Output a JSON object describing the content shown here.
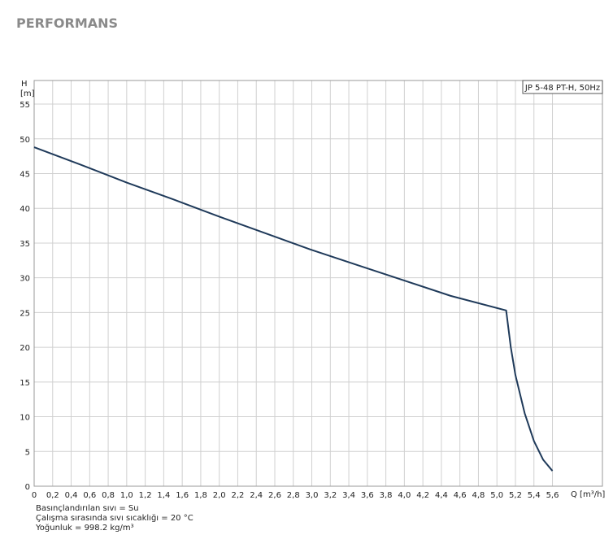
{
  "header": {
    "title": "PERFORMANS"
  },
  "chart_data": {
    "type": "line",
    "y_label": "H",
    "y_unit": "[m]",
    "x_label": "Q [m³/h]",
    "legend_label": "JP 5-48 PT-H, 50Hz",
    "x": [
      0,
      0.5,
      1.0,
      1.5,
      2.0,
      2.5,
      3.0,
      3.5,
      4.0,
      4.5,
      5.1,
      5.15,
      5.2,
      5.3,
      5.4,
      5.5,
      5.6
    ],
    "series": [
      {
        "name": "JP 5-48 PT-H, 50Hz",
        "color": "#1f3a5a",
        "values": [
          48.8,
          46.3,
          43.7,
          41.3,
          38.8,
          36.4,
          34.0,
          31.8,
          29.6,
          27.4,
          25.3,
          20,
          16,
          10.5,
          6.5,
          3.8,
          2.2
        ]
      }
    ],
    "xlim": [
      0,
      6.14
    ],
    "ylim": [
      0,
      58.4
    ],
    "xticks": [
      0,
      {
        "value": 0.2,
        "label": "0,2"
      },
      {
        "value": 0.4,
        "label": "0,4"
      },
      {
        "value": 0.6,
        "label": "0,6"
      },
      {
        "value": 0.8,
        "label": "0,8"
      },
      {
        "value": 1.0,
        "label": "1,0"
      },
      {
        "value": 1.2,
        "label": "1,2"
      },
      {
        "value": 1.4,
        "label": "1,4"
      },
      {
        "value": 1.6,
        "label": "1,6"
      },
      {
        "value": 1.8,
        "label": "1,8"
      },
      {
        "value": 2.0,
        "label": "2,0"
      },
      {
        "value": 2.2,
        "label": "2,2"
      },
      {
        "value": 2.4,
        "label": "2,4"
      },
      {
        "value": 2.6,
        "label": "2,6"
      },
      {
        "value": 2.8,
        "label": "2,8"
      },
      {
        "value": 3.0,
        "label": "3,0"
      },
      {
        "value": 3.2,
        "label": "3,2"
      },
      {
        "value": 3.4,
        "label": "3,4"
      },
      {
        "value": 3.6,
        "label": "3,6"
      },
      {
        "value": 3.8,
        "label": "3,8"
      },
      {
        "value": 4.0,
        "label": "4,0"
      },
      {
        "value": 4.2,
        "label": "4,2"
      },
      {
        "value": 4.4,
        "label": "4,4"
      },
      {
        "value": 4.6,
        "label": "4,6"
      },
      {
        "value": 4.8,
        "label": "4,8"
      },
      {
        "value": 5.0,
        "label": "5,0"
      },
      {
        "value": 5.2,
        "label": "5,2"
      },
      {
        "value": 5.4,
        "label": "5,4"
      },
      {
        "value": 5.6,
        "label": "5,6"
      }
    ],
    "yticks": [
      0,
      5,
      10,
      15,
      20,
      25,
      30,
      35,
      40,
      45,
      50,
      55
    ],
    "grid": true,
    "notes": [
      "Basınçlandırılan sıvı = Su",
      "Çalışma sırasında sıvı sıcaklığı = 20 °C",
      "Yoğunluk = 998.2 kg/m³"
    ]
  }
}
